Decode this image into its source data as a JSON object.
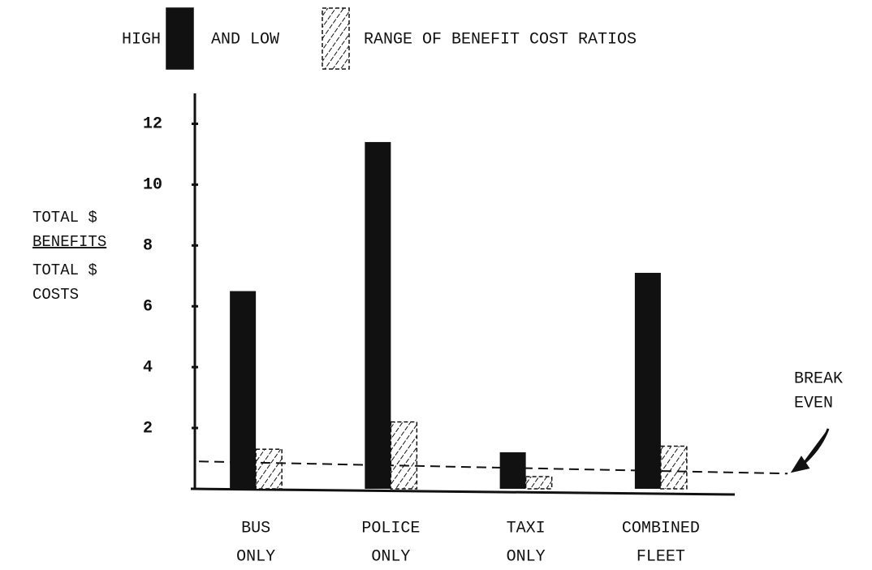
{
  "chart_data": {
    "type": "bar",
    "title": "RANGE OF BENEFIT COST RATIOS",
    "ylabel": {
      "numerator": [
        "TOTAL $",
        "BENEFITS"
      ],
      "denominator": [
        "TOTAL $",
        "COSTS"
      ]
    },
    "categories": [
      [
        "BUS",
        "ONLY"
      ],
      [
        "POLICE",
        "ONLY"
      ],
      [
        "TAXI",
        "ONLY"
      ],
      [
        "COMBINED",
        "FLEET"
      ]
    ],
    "series": [
      {
        "name": "HIGH",
        "color": "#111111",
        "pattern": "solid",
        "values": [
          6.5,
          11.4,
          1.2,
          7.1
        ]
      },
      {
        "name": "AND LOW",
        "color": "#111111",
        "pattern": "hatch",
        "values": [
          1.3,
          2.2,
          0.4,
          1.4
        ]
      }
    ],
    "ylim": [
      0,
      13
    ],
    "yticks": [
      2,
      4,
      6,
      8,
      10,
      12
    ],
    "reference_line": {
      "label": [
        "BREAK",
        "EVEN"
      ],
      "y_start": 0.9,
      "y_end": 0.5
    }
  }
}
